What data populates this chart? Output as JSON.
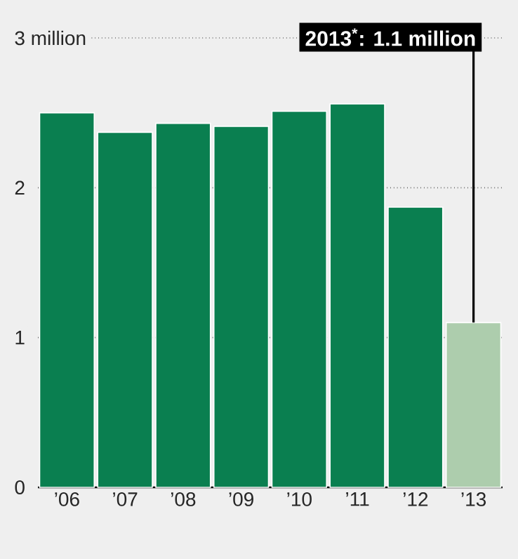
{
  "chart_data": {
    "type": "bar",
    "categories": [
      "’06",
      "’07",
      "’08",
      "’09",
      "’10",
      "’11",
      "’12",
      "’13"
    ],
    "values": [
      2.5,
      2.37,
      2.43,
      2.41,
      2.51,
      2.56,
      1.87,
      1.1
    ],
    "colors": [
      "#0a7f50",
      "#0a7f50",
      "#0a7f50",
      "#0a7f50",
      "#0a7f50",
      "#0a7f50",
      "#0a7f50",
      "#adcdad"
    ],
    "ylim": [
      0,
      3
    ],
    "yticks": [
      0,
      1,
      2,
      {
        "value": 3,
        "label": "3 million"
      }
    ],
    "grid": "y",
    "annotations": [
      {
        "text": "2013$^{*}$: 1.1 million",
        "x": "’13",
        "y": 1.1
      }
    ]
  }
}
